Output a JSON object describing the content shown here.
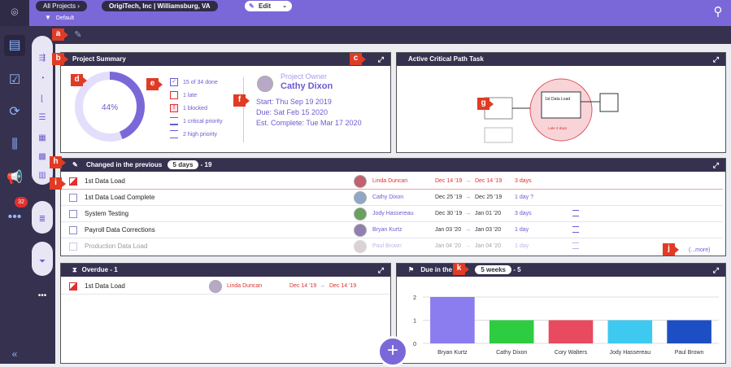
{
  "header": {
    "breadcrumb_all": "All Projects",
    "project": "OrigiTech, Inc | Williamsburg, VA",
    "edit_label": "Edit",
    "filter_label": "Default"
  },
  "markers": {
    "a": "a",
    "b": "b",
    "c": "c",
    "d": "d",
    "e": "e",
    "f": "f",
    "g": "g",
    "h": "h",
    "i": "i",
    "j": "j",
    "k": "k"
  },
  "summary": {
    "title": "Project Summary",
    "percent": "44%",
    "percent_value": 44,
    "stats": [
      {
        "icon": "check",
        "text": "15 of 34 done"
      },
      {
        "icon": "late",
        "text": "1 late"
      },
      {
        "icon": "blocked",
        "text": "1 blocked"
      },
      {
        "icon": "critical",
        "text": "1 critical priority"
      },
      {
        "icon": "high",
        "text": "2 high priority"
      }
    ],
    "owner_label": "Project Owner",
    "owner_name": "Cathy Dixon",
    "start": "Start: Thu Sep 19 2019",
    "due": "Due: Sat Feb 15 2020",
    "est": "Est. Complete: Tue Mar 17 2020"
  },
  "critical_path": {
    "title": "Active Critical Path Task",
    "focus_task": "1st Data Load",
    "late_label": "Late 3 days"
  },
  "changed": {
    "title": "Changed in the previous",
    "period": "5 days",
    "count": "- 19",
    "more": "(...more)",
    "rows": [
      {
        "task": "1st Data Load",
        "person": "Linda Duncan",
        "d1": "Dec 14 '19",
        "arrow": "→",
        "d2": "Dec 14 '19",
        "dur": "3 days",
        "late": true
      },
      {
        "task": "1st Data Load Complete",
        "person": "Cathy Dixon",
        "d1": "Dec 25 '19",
        "arrow": "→",
        "d2": "Dec 25 '19",
        "dur": "1 day ?",
        "late": false
      },
      {
        "task": "System Testing",
        "person": "Jody Hassereau",
        "d1": "Dec 30 '19",
        "arrow": "→",
        "d2": "Jan 01 '20",
        "dur": "3 days",
        "late": false
      },
      {
        "task": "Payroll Data Corrections",
        "person": "Bryan Kurtz",
        "d1": "Jan 03 '20",
        "arrow": "→",
        "d2": "Jan 03 '20",
        "dur": "1 day",
        "late": false
      },
      {
        "task": "Production Data Load",
        "person": "Paul Brown",
        "d1": "Jan 04 '20",
        "arrow": "→",
        "d2": "Jan 04 '20",
        "dur": "1 day",
        "late": false
      }
    ]
  },
  "overdue": {
    "title": "Overdue",
    "count": "- 1",
    "row": {
      "task": "1st Data Load",
      "person": "Linda Duncan",
      "d1": "Dec 14 '19",
      "arrow": "→",
      "d2": "Dec 14 '19"
    }
  },
  "due": {
    "title": "Due in the",
    "period": "5 weeks",
    "count": "- 5"
  },
  "nav": {
    "badge": "32"
  },
  "chart_data": {
    "type": "bar",
    "categories": [
      "Bryan Kurtz",
      "Cathy Dixon",
      "Cory Walters",
      "Jody Hassereau",
      "Paul Brown"
    ],
    "values": [
      2,
      1,
      1,
      1,
      1
    ],
    "ylim": [
      0,
      2
    ],
    "yticks": [
      0,
      1,
      2
    ],
    "colors": [
      "#8b7cf0",
      "#2ecc40",
      "#e84a5f",
      "#3ec9f0",
      "#1d4fc4"
    ]
  }
}
